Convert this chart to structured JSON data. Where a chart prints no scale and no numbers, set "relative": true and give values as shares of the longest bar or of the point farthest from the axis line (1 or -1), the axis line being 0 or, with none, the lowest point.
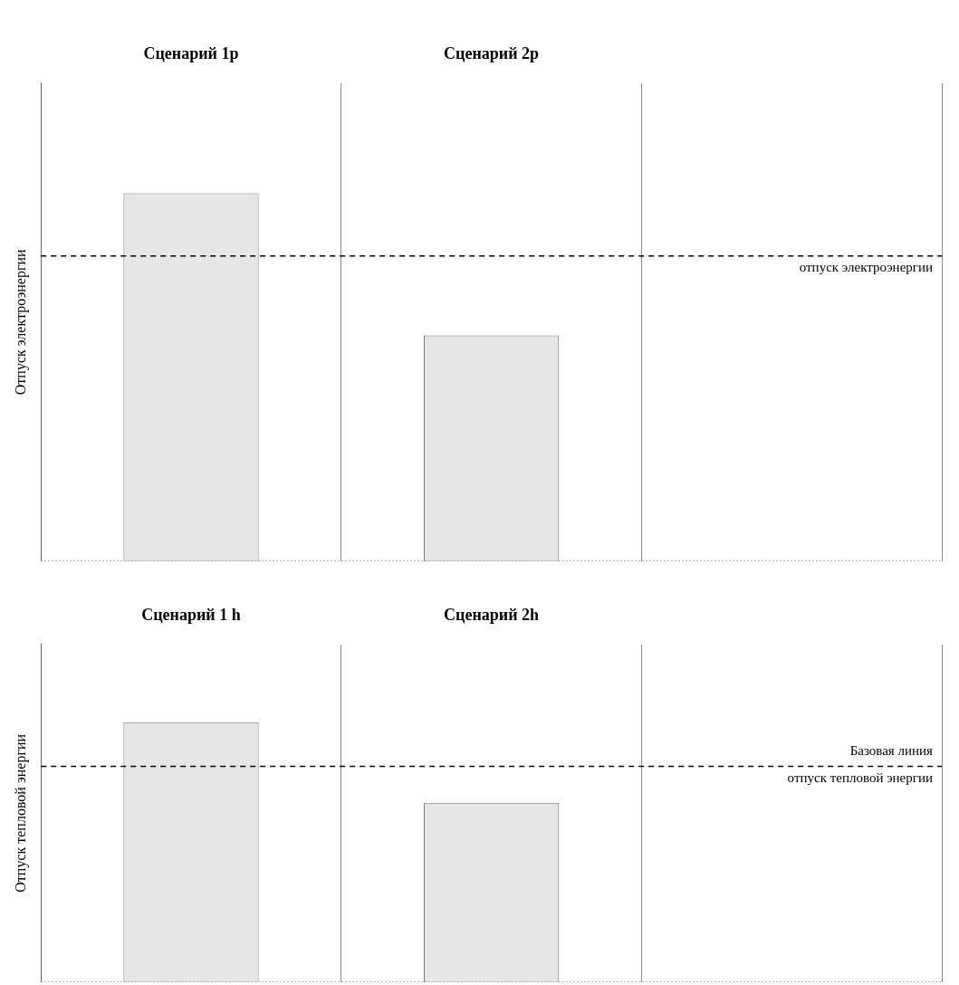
{
  "chart_data": [
    {
      "type": "bar",
      "relative": true,
      "ylabel": "Отпуск электроэнергии",
      "categories": [
        "Сценарий 1р",
        "Сценарий 2р",
        null
      ],
      "values": [
        1,
        0.614,
        null
      ],
      "color": "#e6e6e6",
      "grid": "x",
      "ref_lines": [
        {
          "axis": "y",
          "value": 0.83,
          "label": "отпуск электроэнергии",
          "line_style": "dashed",
          "color": "#000000"
        }
      ]
    },
    {
      "type": "bar",
      "relative": true,
      "ylabel": "Отпуск тепловой энергии",
      "categories": [
        "Сценарий 1 h",
        "Сценарий 2h",
        null
      ],
      "values": [
        1,
        0.69,
        null
      ],
      "color": "#e6e6e6",
      "grid": "x",
      "ref_lines": [
        {
          "axis": "y",
          "value": 0.83,
          "label": "Базовая линия\nотпуск тепловой энергии",
          "line_style": "dashed",
          "color": "#000000"
        }
      ]
    }
  ]
}
